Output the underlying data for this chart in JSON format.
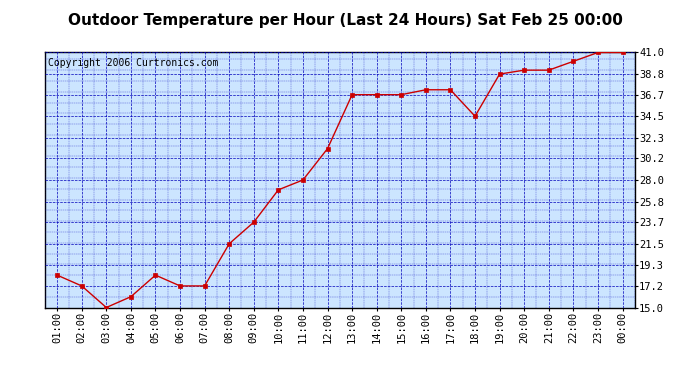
{
  "title": "Outdoor Temperature per Hour (Last 24 Hours) Sat Feb 25 00:00",
  "copyright": "Copyright 2006 Curtronics.com",
  "x_labels": [
    "01:00",
    "02:00",
    "03:00",
    "04:00",
    "05:00",
    "06:00",
    "07:00",
    "08:00",
    "09:00",
    "10:00",
    "11:00",
    "12:00",
    "13:00",
    "14:00",
    "15:00",
    "16:00",
    "17:00",
    "18:00",
    "19:00",
    "20:00",
    "21:00",
    "22:00",
    "23:00",
    "00:00"
  ],
  "y_values": [
    18.3,
    17.2,
    15.0,
    16.1,
    18.3,
    17.2,
    17.2,
    21.5,
    23.7,
    27.0,
    28.0,
    31.2,
    36.7,
    36.7,
    36.7,
    37.2,
    37.2,
    34.5,
    38.8,
    39.2,
    39.2,
    40.1,
    41.0,
    41.0
  ],
  "y_ticks": [
    15.0,
    17.2,
    19.3,
    21.5,
    23.7,
    25.8,
    28.0,
    30.2,
    32.3,
    34.5,
    36.7,
    38.8,
    41.0
  ],
  "y_min": 15.0,
  "y_max": 41.0,
  "line_color": "#cc0000",
  "marker_color": "#cc0000",
  "bg_color": "#cce5ff",
  "grid_color": "#0000bb",
  "title_fontsize": 11,
  "copyright_fontsize": 7,
  "tick_fontsize": 7.5
}
